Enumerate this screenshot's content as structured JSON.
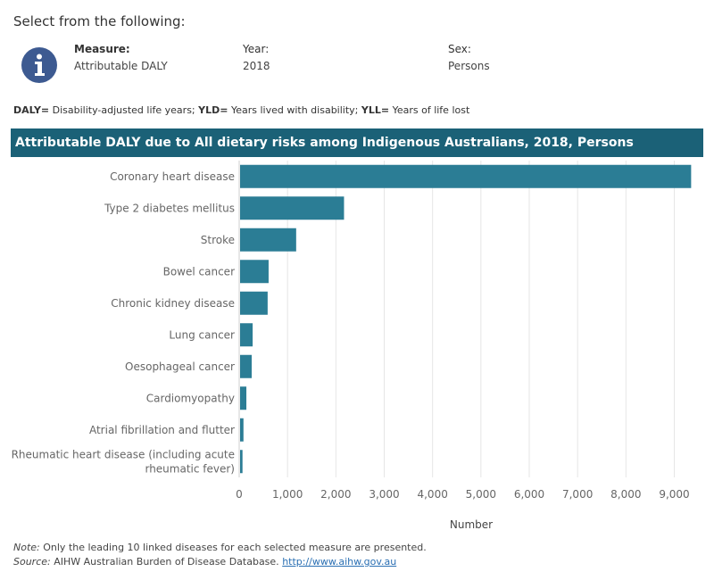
{
  "header": {
    "select_title": "Select from the following:"
  },
  "filters": {
    "measure": {
      "label": "Measure:",
      "value": "Attributable DALY"
    },
    "year": {
      "label": "Year:",
      "value": "2018"
    },
    "sex": {
      "label": "Sex:",
      "value": "Persons"
    }
  },
  "definitions": {
    "daly_key": "DALY=",
    "daly_text": " Disability-adjusted life years; ",
    "yld_key": "YLD=",
    "yld_text": " Years lived with disability; ",
    "yll_key": "YLL=",
    "yll_text": " Years of life lost"
  },
  "banner": {
    "title": "Attributable DALY due to All dietary risks among Indigenous Australians, 2018, Persons"
  },
  "footer": {
    "note_label": "Note:",
    "note_text": " Only the leading 10 linked diseases for each selected measure are presented.",
    "source_label": "Source:",
    "source_text": " AIHW Australian Burden of Disease Database. ",
    "source_link": "http://www.aihw.gov.au"
  },
  "colors": {
    "bar": "#2b7d95",
    "banner": "#1b6177",
    "grid": "#e6e6e6",
    "link": "#2a6fb3"
  },
  "icons": {
    "info": "info-circle-icon"
  },
  "chart_data": {
    "type": "bar",
    "orientation": "horizontal",
    "title": "Attributable DALY due to All dietary risks among Indigenous Australians, 2018, Persons",
    "xlabel": "Number",
    "ylabel": "",
    "categories": [
      "Coronary heart disease",
      "Type 2 diabetes mellitus",
      "Stroke",
      "Bowel cancer",
      "Chronic kidney disease",
      "Lung cancer",
      "Oesophageal cancer",
      "Cardiomyopathy",
      "Atrial fibrillation and flutter",
      "Rheumatic heart disease (including acute rheumatic fever)"
    ],
    "category_label_lines": [
      [
        "Coronary heart disease"
      ],
      [
        "Type 2 diabetes mellitus"
      ],
      [
        "Stroke"
      ],
      [
        "Bowel cancer"
      ],
      [
        "Chronic kidney disease"
      ],
      [
        "Lung cancer"
      ],
      [
        "Oesophageal cancer"
      ],
      [
        "Cardiomyopathy"
      ],
      [
        "Atrial fibrillation and flutter"
      ],
      [
        "Rheumatic heart disease (including acute",
        "rheumatic fever)"
      ]
    ],
    "values": [
      9330,
      2150,
      1160,
      590,
      570,
      260,
      240,
      130,
      70,
      50
    ],
    "xlim": [
      0,
      9600
    ],
    "ticks": [
      0,
      1000,
      2000,
      3000,
      4000,
      5000,
      6000,
      7000,
      8000,
      9000
    ],
    "tick_labels": [
      "0",
      "1,000",
      "2,000",
      "3,000",
      "4,000",
      "5,000",
      "6,000",
      "7,000",
      "8,000",
      "9,000"
    ],
    "grid": true
  }
}
